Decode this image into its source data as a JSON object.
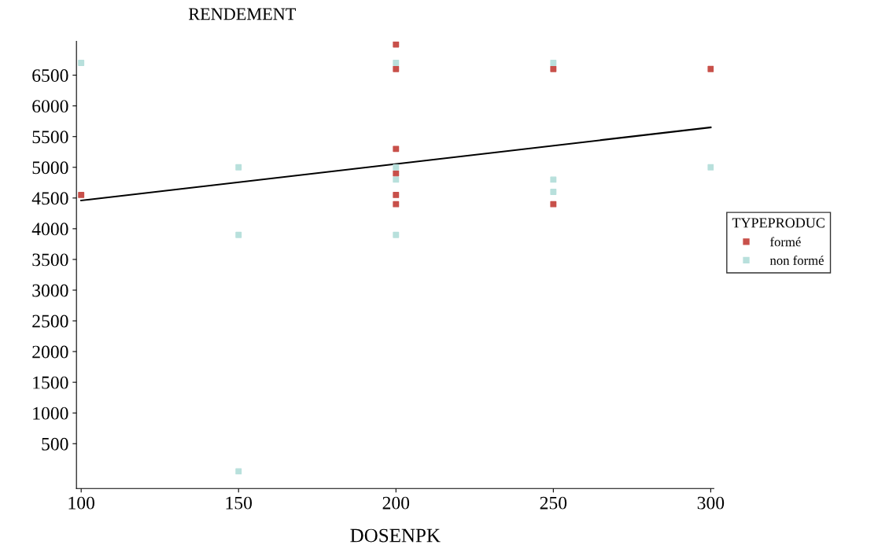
{
  "chart_data": {
    "type": "scatter",
    "ylabel": "RENDEMENT",
    "xlabel": "DOSENPK",
    "legend_title": "TYPEPRODUC",
    "legend": "right",
    "grid": false,
    "marker": "square",
    "xlim": [
      98.5,
      301
    ],
    "xticks": [
      100,
      150,
      200,
      250,
      300
    ],
    "ylim": [
      -230,
      7050
    ],
    "yticks": [
      500,
      1000,
      1500,
      2000,
      2500,
      3000,
      3500,
      4000,
      4500,
      5000,
      5500,
      6000,
      6500
    ],
    "series": [
      {
        "name": "formé",
        "color": "#c8504a",
        "x": [
          100,
          200,
          200,
          200,
          200,
          200,
          200,
          250,
          250,
          300
        ],
        "values": [
          4550,
          7000,
          6600,
          5300,
          4900,
          4550,
          4400,
          6600,
          4400,
          6600
        ]
      },
      {
        "name": "non formé",
        "color": "#b8e0dc",
        "x": [
          100,
          150,
          150,
          150,
          200,
          200,
          200,
          200,
          250,
          250,
          250,
          300
        ],
        "values": [
          6700,
          5000,
          3900,
          50,
          6700,
          5000,
          4800,
          3900,
          6700,
          4800,
          4600,
          5000
        ]
      },
      {
        "type": "line",
        "color": "#000000",
        "marker": "none",
        "x": [
          100,
          300
        ],
        "values": [
          4460,
          5650
        ]
      }
    ]
  }
}
